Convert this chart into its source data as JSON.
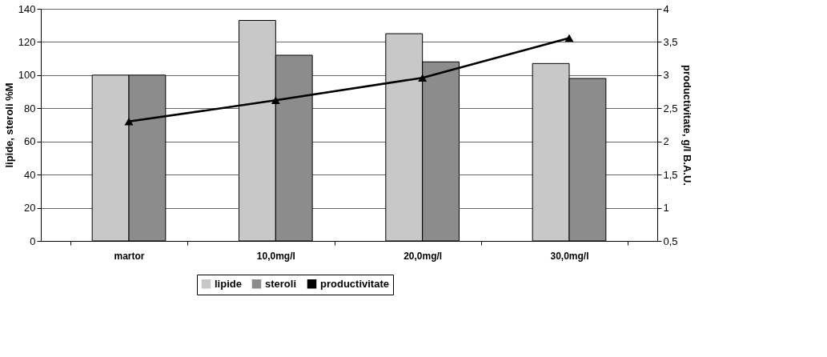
{
  "chart_data": {
    "type": "bar",
    "categories": [
      "martor",
      "10,0mg/l",
      "20,0mg/l",
      "30,0mg/l"
    ],
    "ylabel": "lipide, steroli  %M",
    "y2label": "productivitate, g/l B.A.U.",
    "ylim": [
      0,
      140
    ],
    "yticks": [
      0,
      20,
      40,
      60,
      80,
      100,
      120,
      140
    ],
    "y2lim": [
      0.5,
      4
    ],
    "y2ticks": [
      {
        "value": 0.5,
        "label": "0,5"
      },
      1,
      {
        "value": 1.5,
        "label": "1,5"
      },
      2,
      {
        "value": 2.5,
        "label": "2,5"
      },
      3,
      {
        "value": 3.5,
        "label": "3,5"
      },
      4
    ],
    "grid": "y",
    "legend": "bottom",
    "series": [
      {
        "name": "lipide",
        "color": "#c8c8c8",
        "values": [
          100,
          133,
          125,
          107
        ]
      },
      {
        "name": "steroli",
        "color": "#8c8c8c",
        "values": [
          100,
          112,
          108,
          98
        ]
      },
      {
        "name": "productivitate",
        "type": "line",
        "axis": "y2",
        "color": "#000000",
        "marker": "triangle",
        "values": [
          2.3,
          2.62,
          2.96,
          3.56
        ]
      }
    ]
  }
}
